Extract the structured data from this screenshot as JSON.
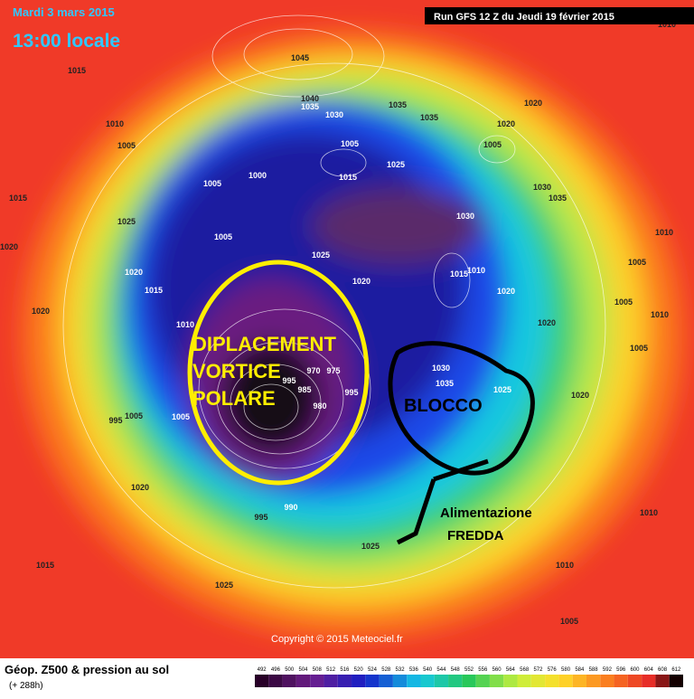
{
  "header": {
    "date": "Mardi 3 mars 2015",
    "time": "13:00 locale",
    "run": "Run GFS 12 Z du Jeudi 19 février 2015"
  },
  "annotations": {
    "vortex": [
      "DIPLACEMENT",
      "VORTICE",
      "POLARE"
    ],
    "block": "BLOCCO",
    "feed": [
      "Alimentazione",
      "FREDDA"
    ]
  },
  "isobar_labels": [
    "1045",
    "1040",
    "1035",
    "1030",
    "1035",
    "1035",
    "1020",
    "1020",
    "1010",
    "1015",
    "1010",
    "1005",
    "1005",
    "1005",
    "1015",
    "1025",
    "1000",
    "1005",
    "1030",
    "1035",
    "1015",
    "1025",
    "1030",
    "1020",
    "1005",
    "1025",
    "1010",
    "1020",
    "1015",
    "1020",
    "1015",
    "1010",
    "1020",
    "1005",
    "1020",
    "1020",
    "1005",
    "1010",
    "1005",
    "1030",
    "1035",
    "1025",
    "1020",
    "970",
    "975",
    "995",
    "985",
    "995",
    "980",
    "1005",
    "995",
    "1005",
    "1020",
    "990",
    "995",
    "1010",
    "1025",
    "1015",
    "1010",
    "1025",
    "1005",
    "1010"
  ],
  "copyright": "Copyright © 2015 Meteociel.fr",
  "footer": {
    "title": "Géop. Z500 & pression au sol",
    "lead": "(+ 288h)",
    "scale": [
      492,
      496,
      500,
      504,
      508,
      512,
      516,
      520,
      524,
      528,
      532,
      536,
      540,
      544,
      548,
      552,
      556,
      560,
      564,
      568,
      572,
      576,
      580,
      584,
      588,
      592,
      596,
      600,
      604,
      608,
      612
    ]
  }
}
